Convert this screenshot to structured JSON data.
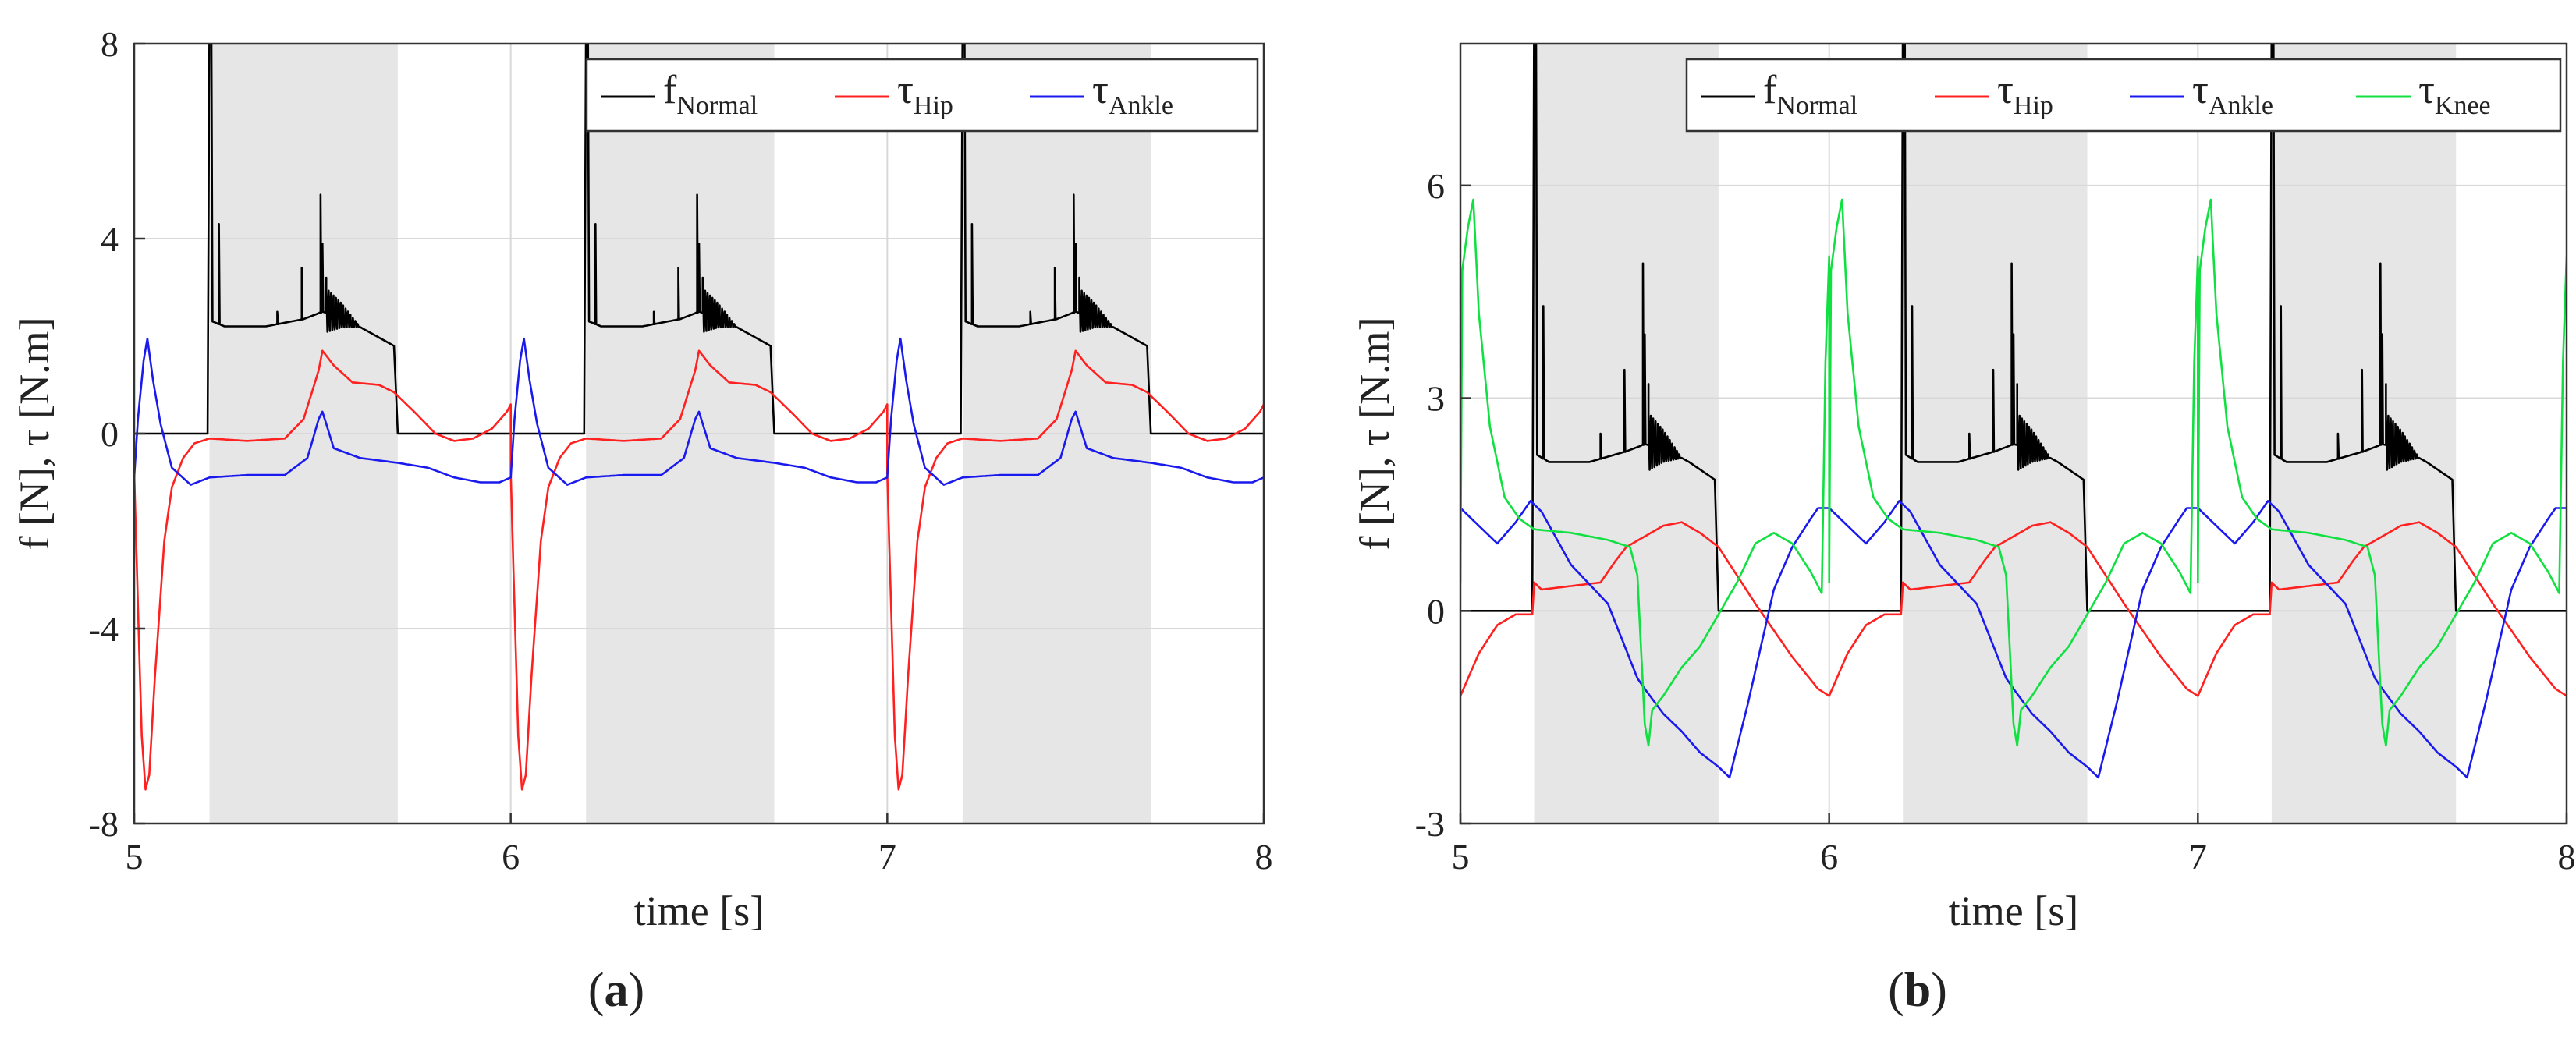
{
  "chart_data": [
    {
      "type": "line",
      "panel": "a",
      "panel_label_open": "(",
      "panel_label_letter": "a",
      "panel_label_close": ")",
      "xlabel": "time [s]",
      "ylabel": "f [N], τ [N.m]",
      "xlim": [
        5,
        8
      ],
      "ylim": [
        -8,
        8
      ],
      "xticks": [
        5,
        6,
        7,
        8
      ],
      "yticks": [
        -8,
        -4,
        0,
        4,
        8
      ],
      "xtick_labels": [
        "5",
        "6",
        "7",
        "8"
      ],
      "ytick_labels": [
        "-8",
        "-4",
        "0",
        "4",
        "8"
      ],
      "grid": true,
      "legend_position": "top-right",
      "shaded_intervals": [
        [
          5.2,
          5.7
        ],
        [
          6.2,
          6.7
        ],
        [
          7.2,
          7.7
        ]
      ],
      "period": 1.0,
      "series": [
        {
          "key": "normal",
          "name": "f",
          "subscript": "Normal",
          "color": "#000000",
          "base": [
            [
              0.0,
              0
            ],
            [
              0.195,
              0
            ],
            [
              0.2,
              8.5
            ],
            [
              0.205,
              8.5
            ],
            [
              0.208,
              2.3
            ],
            [
              0.24,
              2.2
            ],
            [
              0.35,
              2.2
            ],
            [
              0.45,
              2.35
            ],
            [
              0.5,
              2.5
            ],
            [
              0.55,
              2.4
            ],
            [
              0.62,
              2.1
            ],
            [
              0.69,
              1.8
            ],
            [
              0.7,
              0
            ],
            [
              1.0,
              0
            ]
          ],
          "spikes": [
            [
              0.225,
              4.3
            ],
            [
              0.38,
              2.5
            ],
            [
              0.445,
              3.4
            ],
            [
              0.495,
              4.9
            ],
            [
              0.5,
              3.9
            ],
            [
              0.51,
              3.2
            ]
          ],
          "oscillation": {
            "start": 0.51,
            "end": 0.6,
            "amplitude": 0.5,
            "count": 14
          }
        },
        {
          "key": "hip",
          "name": "τ",
          "subscript": "Hip",
          "color": "#ff2020",
          "base": [
            [
              0.0,
              -0.8
            ],
            [
              0.008,
              -3.0
            ],
            [
              0.02,
              -6.2
            ],
            [
              0.03,
              -7.3
            ],
            [
              0.04,
              -7.0
            ],
            [
              0.055,
              -5.0
            ],
            [
              0.08,
              -2.2
            ],
            [
              0.1,
              -1.1
            ],
            [
              0.13,
              -0.5
            ],
            [
              0.16,
              -0.2
            ],
            [
              0.2,
              -0.1
            ],
            [
              0.3,
              -0.15
            ],
            [
              0.4,
              -0.1
            ],
            [
              0.45,
              0.3
            ],
            [
              0.49,
              1.3
            ],
            [
              0.5,
              1.7
            ],
            [
              0.53,
              1.4
            ],
            [
              0.58,
              1.05
            ],
            [
              0.65,
              1.0
            ],
            [
              0.69,
              0.85
            ],
            [
              0.75,
              0.4
            ],
            [
              0.8,
              0.0
            ],
            [
              0.85,
              -0.15
            ],
            [
              0.9,
              -0.1
            ],
            [
              0.95,
              0.1
            ],
            [
              0.99,
              0.45
            ],
            [
              1.0,
              0.6
            ]
          ]
        },
        {
          "key": "ankle",
          "name": "τ",
          "subscript": "Ankle",
          "color": "#1a1aee",
          "base": [
            [
              0.0,
              -0.9
            ],
            [
              0.01,
              0.3
            ],
            [
              0.025,
              1.5
            ],
            [
              0.035,
              1.95
            ],
            [
              0.05,
              1.1
            ],
            [
              0.07,
              0.2
            ],
            [
              0.1,
              -0.7
            ],
            [
              0.15,
              -1.05
            ],
            [
              0.2,
              -0.9
            ],
            [
              0.3,
              -0.85
            ],
            [
              0.4,
              -0.85
            ],
            [
              0.46,
              -0.5
            ],
            [
              0.49,
              0.3
            ],
            [
              0.5,
              0.45
            ],
            [
              0.53,
              -0.3
            ],
            [
              0.6,
              -0.5
            ],
            [
              0.7,
              -0.6
            ],
            [
              0.78,
              -0.7
            ],
            [
              0.85,
              -0.9
            ],
            [
              0.92,
              -1.0
            ],
            [
              0.97,
              -1.0
            ],
            [
              1.0,
              -0.9
            ]
          ]
        }
      ]
    },
    {
      "type": "line",
      "panel": "b",
      "panel_label_open": "(",
      "panel_label_letter": "b",
      "panel_label_close": ")",
      "xlabel": "time [s]",
      "ylabel": "f [N], τ [N.m]",
      "xlim": [
        5,
        8
      ],
      "ylim": [
        -3,
        8
      ],
      "xticks": [
        5,
        6,
        7,
        8
      ],
      "yticks": [
        -3,
        0,
        3,
        6
      ],
      "xtick_labels": [
        "5",
        "6",
        "7",
        "8"
      ],
      "ytick_labels": [
        "-3",
        "0",
        "3",
        "6"
      ],
      "grid": true,
      "legend_position": "top-right",
      "shaded_intervals": [
        [
          5.2,
          5.7
        ],
        [
          6.2,
          6.7
        ],
        [
          7.2,
          7.7
        ]
      ],
      "period": 1.0,
      "series": [
        {
          "key": "normal",
          "name": "f",
          "subscript": "Normal",
          "color": "#000000",
          "base": [
            [
              0.0,
              0
            ],
            [
              0.195,
              0
            ],
            [
              0.2,
              8.5
            ],
            [
              0.205,
              8.5
            ],
            [
              0.208,
              2.2
            ],
            [
              0.24,
              2.1
            ],
            [
              0.35,
              2.1
            ],
            [
              0.45,
              2.25
            ],
            [
              0.5,
              2.35
            ],
            [
              0.55,
              2.3
            ],
            [
              0.62,
              2.1
            ],
            [
              0.69,
              1.85
            ],
            [
              0.7,
              0
            ],
            [
              1.0,
              0
            ]
          ],
          "spikes": [
            [
              0.225,
              4.3
            ],
            [
              0.38,
              2.5
            ],
            [
              0.445,
              3.4
            ],
            [
              0.495,
              4.9
            ],
            [
              0.5,
              3.9
            ],
            [
              0.51,
              3.2
            ]
          ],
          "oscillation": {
            "start": 0.51,
            "end": 0.6,
            "amplitude": 0.45,
            "count": 14
          }
        },
        {
          "key": "hip",
          "name": "τ",
          "subscript": "Hip",
          "color": "#ff2020",
          "base": [
            [
              0.0,
              -1.2
            ],
            [
              0.05,
              -0.6
            ],
            [
              0.1,
              -0.2
            ],
            [
              0.15,
              -0.05
            ],
            [
              0.195,
              -0.05
            ],
            [
              0.2,
              0.4
            ],
            [
              0.22,
              0.3
            ],
            [
              0.3,
              0.35
            ],
            [
              0.38,
              0.4
            ],
            [
              0.42,
              0.7
            ],
            [
              0.45,
              0.9
            ],
            [
              0.55,
              1.2
            ],
            [
              0.6,
              1.25
            ],
            [
              0.65,
              1.1
            ],
            [
              0.7,
              0.9
            ],
            [
              0.8,
              0.1
            ],
            [
              0.9,
              -0.65
            ],
            [
              0.97,
              -1.1
            ],
            [
              1.0,
              -1.2
            ]
          ]
        },
        {
          "key": "ankle",
          "name": "τ",
          "subscript": "Ankle",
          "color": "#1a1aee",
          "base": [
            [
              0.0,
              1.45
            ],
            [
              0.05,
              1.2
            ],
            [
              0.1,
              0.95
            ],
            [
              0.15,
              1.25
            ],
            [
              0.19,
              1.55
            ],
            [
              0.22,
              1.4
            ],
            [
              0.3,
              0.65
            ],
            [
              0.4,
              0.1
            ],
            [
              0.48,
              -0.95
            ],
            [
              0.5,
              -1.1
            ],
            [
              0.55,
              -1.45
            ],
            [
              0.6,
              -1.7
            ],
            [
              0.65,
              -2.0
            ],
            [
              0.7,
              -2.2
            ],
            [
              0.73,
              -2.35
            ],
            [
              0.78,
              -1.3
            ],
            [
              0.85,
              0.3
            ],
            [
              0.9,
              0.9
            ],
            [
              0.95,
              1.3
            ],
            [
              0.97,
              1.45
            ],
            [
              1.0,
              1.45
            ]
          ]
        },
        {
          "key": "knee",
          "name": "τ",
          "subscript": "Knee",
          "color": "#10e040",
          "base": [
            [
              0.0,
              0.4
            ],
            [
              0.005,
              4.8
            ],
            [
              0.02,
              5.4
            ],
            [
              0.035,
              5.8
            ],
            [
              0.05,
              4.2
            ],
            [
              0.08,
              2.6
            ],
            [
              0.12,
              1.6
            ],
            [
              0.16,
              1.3
            ],
            [
              0.2,
              1.15
            ],
            [
              0.3,
              1.1
            ],
            [
              0.4,
              1.0
            ],
            [
              0.46,
              0.9
            ],
            [
              0.48,
              0.5
            ],
            [
              0.5,
              -1.6
            ],
            [
              0.51,
              -1.9
            ],
            [
              0.52,
              -1.4
            ],
            [
              0.55,
              -1.2
            ],
            [
              0.6,
              -0.8
            ],
            [
              0.65,
              -0.5
            ],
            [
              0.7,
              -0.05
            ],
            [
              0.75,
              0.4
            ],
            [
              0.8,
              0.95
            ],
            [
              0.85,
              1.1
            ],
            [
              0.9,
              0.95
            ],
            [
              0.95,
              0.55
            ],
            [
              0.98,
              0.25
            ],
            [
              0.99,
              3.5
            ],
            [
              1.0,
              5.0
            ]
          ]
        }
      ]
    }
  ]
}
